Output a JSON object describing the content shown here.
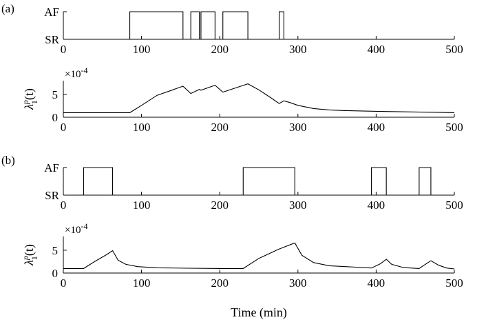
{
  "figure": {
    "xlabel": "Time (min)",
    "x_ticks": [
      0,
      100,
      200,
      300,
      400,
      500
    ],
    "state_labels": [
      "SR",
      "AF"
    ],
    "lambda_ylabel": "λ",
    "lambda_ylabel_sup": "p",
    "lambda_ylabel_sub": "1",
    "lambda_ylabel_tail": "(t)",
    "lambda_multiplier": "×10",
    "lambda_multiplier_exp": "-4"
  },
  "chart_data": [
    {
      "panel": "(a)",
      "type": "line",
      "subplot": "rhythm",
      "xlim": [
        0,
        500
      ],
      "y_categories": [
        "SR",
        "AF"
      ],
      "af_episodes": [
        [
          85,
          153
        ],
        [
          163,
          174
        ],
        [
          176,
          194
        ],
        [
          204,
          236
        ],
        [
          276,
          282
        ]
      ]
    },
    {
      "panel": "(a)",
      "type": "line",
      "subplot": "lambda",
      "xlim": [
        0,
        500
      ],
      "ylim": [
        0,
        8
      ],
      "y_ticks": [
        0,
        5
      ],
      "y_scale": "1e-4",
      "x": [
        0,
        85,
        100,
        120,
        140,
        153,
        163,
        174,
        176,
        194,
        204,
        220,
        236,
        250,
        265,
        276,
        282,
        290,
        300,
        320,
        340,
        360,
        400,
        450,
        500
      ],
      "y": [
        1.0,
        1.0,
        2.6,
        4.8,
        6.0,
        6.8,
        5.2,
        6.1,
        5.9,
        7.0,
        5.5,
        6.4,
        7.3,
        6.0,
        4.3,
        3.0,
        3.6,
        3.2,
        2.6,
        1.9,
        1.6,
        1.45,
        1.3,
        1.15,
        1.0
      ]
    },
    {
      "panel": "(b)",
      "type": "line",
      "subplot": "rhythm",
      "xlim": [
        0,
        500
      ],
      "y_categories": [
        "SR",
        "AF"
      ],
      "af_episodes": [
        [
          26,
          63
        ],
        [
          230,
          296
        ],
        [
          394,
          413
        ],
        [
          455,
          470
        ]
      ]
    },
    {
      "panel": "(b)",
      "type": "line",
      "subplot": "lambda",
      "xlim": [
        0,
        500
      ],
      "ylim": [
        0,
        8
      ],
      "y_ticks": [
        0,
        5
      ],
      "y_scale": "1e-4",
      "x": [
        0,
        26,
        40,
        55,
        63,
        70,
        80,
        95,
        120,
        160,
        200,
        230,
        250,
        275,
        296,
        305,
        320,
        340,
        394,
        405,
        413,
        420,
        435,
        455,
        462,
        470,
        480,
        490,
        500
      ],
      "y": [
        1.0,
        1.0,
        2.5,
        4.0,
        4.9,
        2.8,
        1.9,
        1.4,
        1.15,
        1.05,
        1.0,
        1.0,
        3.2,
        5.2,
        6.6,
        3.9,
        2.3,
        1.6,
        1.1,
        2.0,
        3.0,
        1.9,
        1.2,
        1.0,
        1.8,
        2.7,
        1.7,
        1.1,
        0.9
      ]
    }
  ]
}
